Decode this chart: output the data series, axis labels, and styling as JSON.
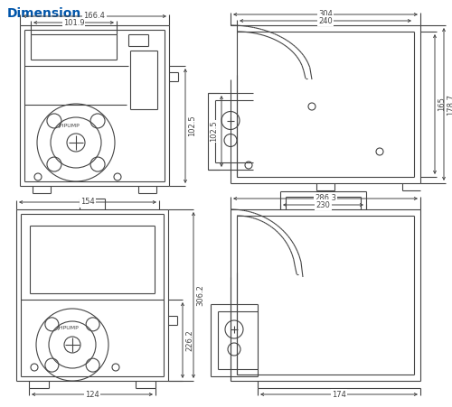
{
  "title": "Dimension",
  "title_color": "#0055AA",
  "title_fontsize": 10,
  "bg_color": "#ffffff",
  "line_color": "#444444",
  "dim_color": "#444444",
  "lw": 0.8,
  "top_left": {
    "dim_outer_w": "166.4",
    "dim_inner_w": "101.9",
    "dim_h": "102.5"
  },
  "top_right": {
    "dim_w1": "304",
    "dim_w2": "240",
    "dim_h1": "165",
    "dim_h2": "178.7"
  },
  "bot_left": {
    "dim_outer_w": "154",
    "dim_bot_w": "124",
    "dim_h1": "226.2",
    "dim_h2": "306.2"
  },
  "bot_right": {
    "dim_w1": "286.3",
    "dim_w2": "230",
    "dim_bot_w": "174"
  }
}
